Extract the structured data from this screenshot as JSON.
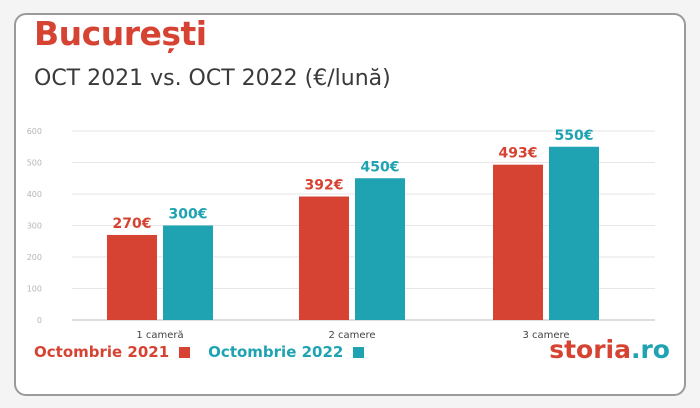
{
  "colors": {
    "accent_red": "#d64332",
    "accent_teal": "#1fa3b2",
    "brand_dark": "#d64332",
    "brand_dot": "#1fa3b2"
  },
  "header": {
    "title": "București",
    "subtitle": "OCT 2021 vs. OCT 2022 (€/lună)"
  },
  "legend": {
    "items": [
      {
        "label": "Octombrie 2021",
        "color": "#d64332"
      },
      {
        "label": "Octombrie 2022",
        "color": "#1fa3b2"
      }
    ]
  },
  "brand": {
    "name": "storia",
    "suffix": ".ro"
  },
  "chart_data": {
    "type": "bar",
    "categories": [
      "1 cameră",
      "2 camere",
      "3 camere"
    ],
    "series": [
      {
        "name": "Octombrie 2021",
        "values": [
          270,
          392,
          493
        ],
        "labels": [
          "270€",
          "392€",
          "493€"
        ],
        "color": "#d64332"
      },
      {
        "name": "Octombrie 2022",
        "values": [
          300,
          450,
          550
        ],
        "labels": [
          "300€",
          "450€",
          "550€"
        ],
        "color": "#1fa3b2"
      }
    ],
    "ylim": [
      0,
      600
    ],
    "yticks": [
      0,
      100,
      200,
      300,
      400,
      500,
      600
    ],
    "grid": true,
    "legend": "bottom-left"
  }
}
